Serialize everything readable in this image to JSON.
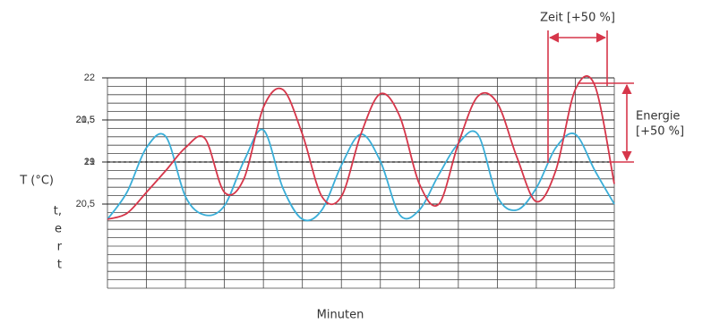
{
  "chart_data": {
    "type": "line",
    "y_label": "T (°C)",
    "x_label": "Minuten",
    "x": [
      0,
      0.5,
      1,
      1.5,
      2,
      2.5,
      3,
      3.5,
      4,
      4.5,
      5,
      5.5,
      6,
      6.5,
      7,
      7.5,
      8,
      8.5,
      9,
      9.5,
      10,
      10.5,
      11,
      11.5,
      12,
      12.5,
      13
    ],
    "xlim": [
      0,
      13
    ],
    "ylim": [
      19.5,
      22
    ],
    "yticks": [
      {
        "value": 22,
        "label": "22"
      },
      {
        "value": 21.5,
        "label": "21,5"
      },
      {
        "value": 21,
        "label": "21"
      },
      {
        "value": 20.5,
        "label": "20,5"
      }
    ],
    "y_extra_labels": [
      "19",
      "20,5"
    ],
    "ref_line": 21,
    "series": [
      {
        "color": "#3aaed8",
        "values": [
          20.32,
          20.64,
          21.17,
          21.3,
          20.59,
          20.37,
          20.48,
          21.01,
          21.38,
          20.69,
          20.32,
          20.43,
          20.96,
          21.33,
          21.01,
          20.37,
          20.43,
          20.85,
          21.22,
          21.33,
          20.59,
          20.43,
          20.69,
          21.17,
          21.33,
          20.9,
          20.5
        ]
      },
      {
        "color": "#d6364a",
        "values": [
          20.32,
          20.39,
          20.64,
          20.9,
          21.17,
          21.28,
          20.64,
          20.8,
          21.65,
          21.86,
          21.33,
          20.59,
          20.59,
          21.33,
          21.81,
          21.54,
          20.74,
          20.5,
          21.22,
          21.78,
          21.7,
          21.06,
          20.53,
          20.9,
          21.86,
          21.91,
          20.74
        ]
      }
    ],
    "annotations": {
      "time": "Zeit [+50 %]",
      "energy": [
        "Energie",
        "[+50 %]"
      ]
    },
    "left_note": [
      "t,",
      "e",
      "r",
      "t"
    ]
  }
}
